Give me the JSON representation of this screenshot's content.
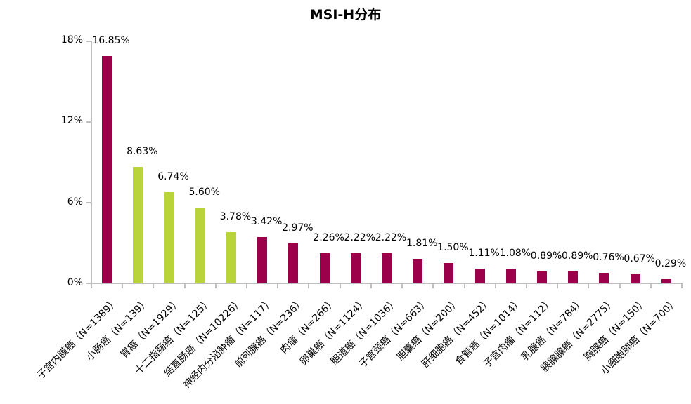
{
  "title": "MSI-H分布",
  "colors": {
    "primary": "#9c004b",
    "highlight": "#b9d43a",
    "axis": "#bfbfbf"
  },
  "y_axis": {
    "ticks": [
      "0%",
      "6%",
      "12%",
      "18%"
    ]
  },
  "chart_data": {
    "type": "bar",
    "title": "MSI-H分布",
    "xlabel": "",
    "ylabel": "",
    "ylim": [
      0,
      18
    ],
    "y_ticks": [
      "0%",
      "6%",
      "12%",
      "18%"
    ],
    "grid": false,
    "legend": null,
    "categories": [
      "子宫内膜癌（N=1389）",
      "小肠癌（N=139）",
      "胃癌（N=1929）",
      "十二指肠癌（N=125）",
      "结直肠癌（N=10226）",
      "神经内分泌肿瘤（N=117）",
      "前列腺癌（N=236）",
      "肉瘤（N=266）",
      "卵巢癌（N=1124）",
      "胆道癌（N=1036）",
      "子宫颈癌（N=663）",
      "胆囊癌（N=200）",
      "肝细胞癌（N=452）",
      "食管癌（N=1014）",
      "子宫肉瘤（N=112）",
      "乳腺癌（N=784）",
      "胰腺腺癌（N=2775）",
      "胸腺癌（N=150）",
      "小细胞肺癌（N=700）"
    ],
    "values": [
      16.85,
      8.63,
      6.74,
      5.6,
      3.78,
      3.42,
      2.97,
      2.26,
      2.22,
      2.22,
      1.81,
      1.5,
      1.11,
      1.08,
      0.89,
      0.89,
      0.76,
      0.67,
      0.29
    ],
    "value_labels": [
      "16.85%",
      "8.63%",
      "6.74%",
      "5.60%",
      "3.78%",
      "3.42%",
      "2.97%",
      "2.26%",
      "2.22%",
      "2.22%",
      "1.81%",
      "1.50%",
      "1.11%",
      "1.08%",
      "0.89%",
      "0.89%",
      "0.76%",
      "0.67%",
      "0.29%"
    ],
    "bar_colors": [
      "#9c004b",
      "#b9d43a",
      "#b9d43a",
      "#b9d43a",
      "#b9d43a",
      "#9c004b",
      "#9c004b",
      "#9c004b",
      "#9c004b",
      "#9c004b",
      "#9c004b",
      "#9c004b",
      "#9c004b",
      "#9c004b",
      "#9c004b",
      "#9c004b",
      "#9c004b",
      "#9c004b",
      "#9c004b"
    ]
  }
}
